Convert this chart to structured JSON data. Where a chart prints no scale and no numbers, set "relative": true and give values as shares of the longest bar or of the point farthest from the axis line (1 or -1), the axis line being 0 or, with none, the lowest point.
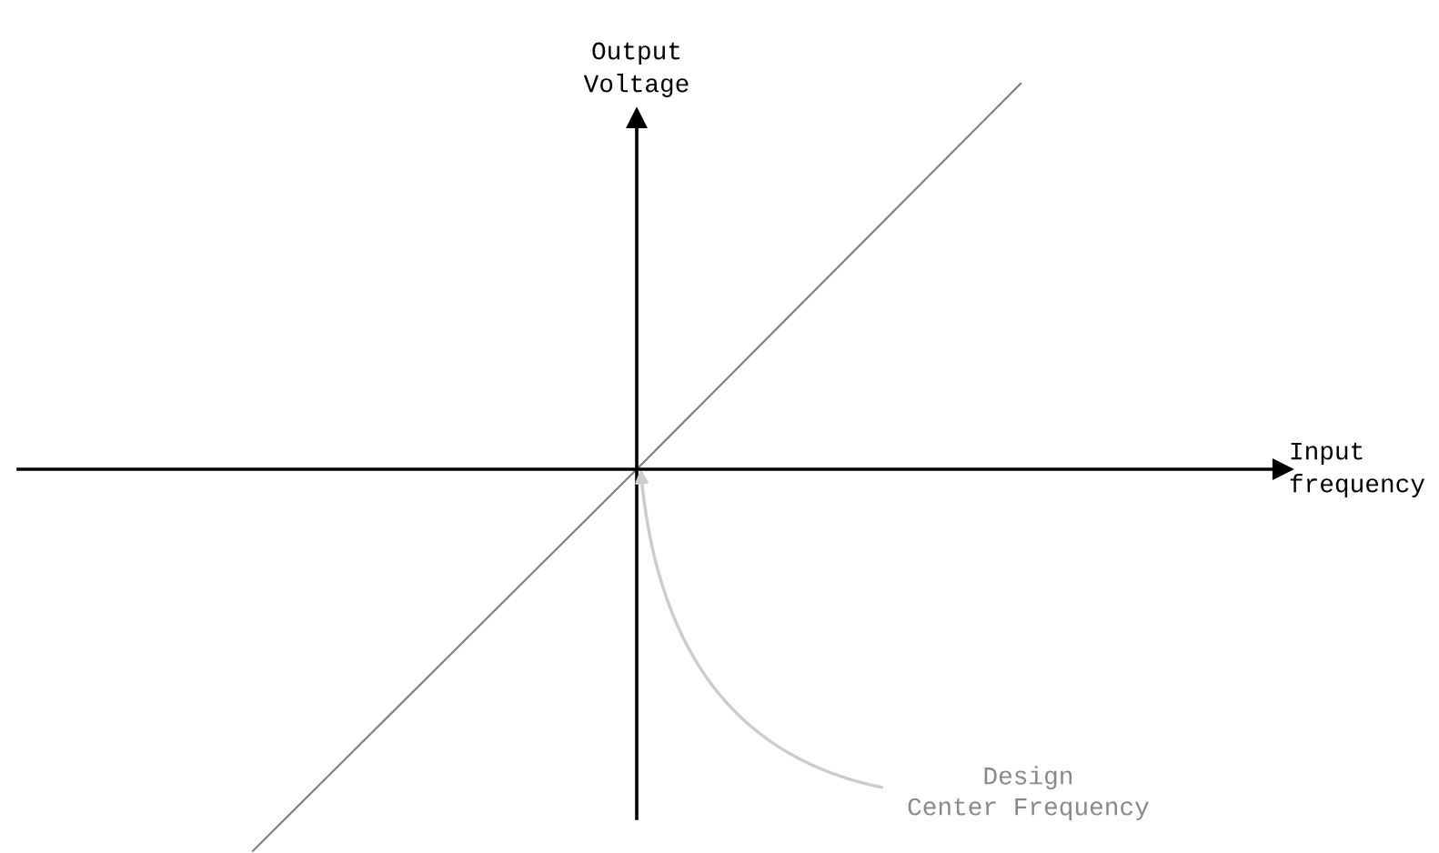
{
  "chart_data": {
    "type": "line",
    "relative": true,
    "xlabel": "Input\nfrequency",
    "ylabel": "Output\nVoltage",
    "categories": [
      null,
      null,
      null
    ],
    "series": [
      {
        "color": "#808080",
        "values": [
          -0.99,
          0,
          1
        ]
      }
    ],
    "annotations": [
      "Design\nCenter Frequency"
    ],
    "marker": "none",
    "line_style": "solid"
  }
}
